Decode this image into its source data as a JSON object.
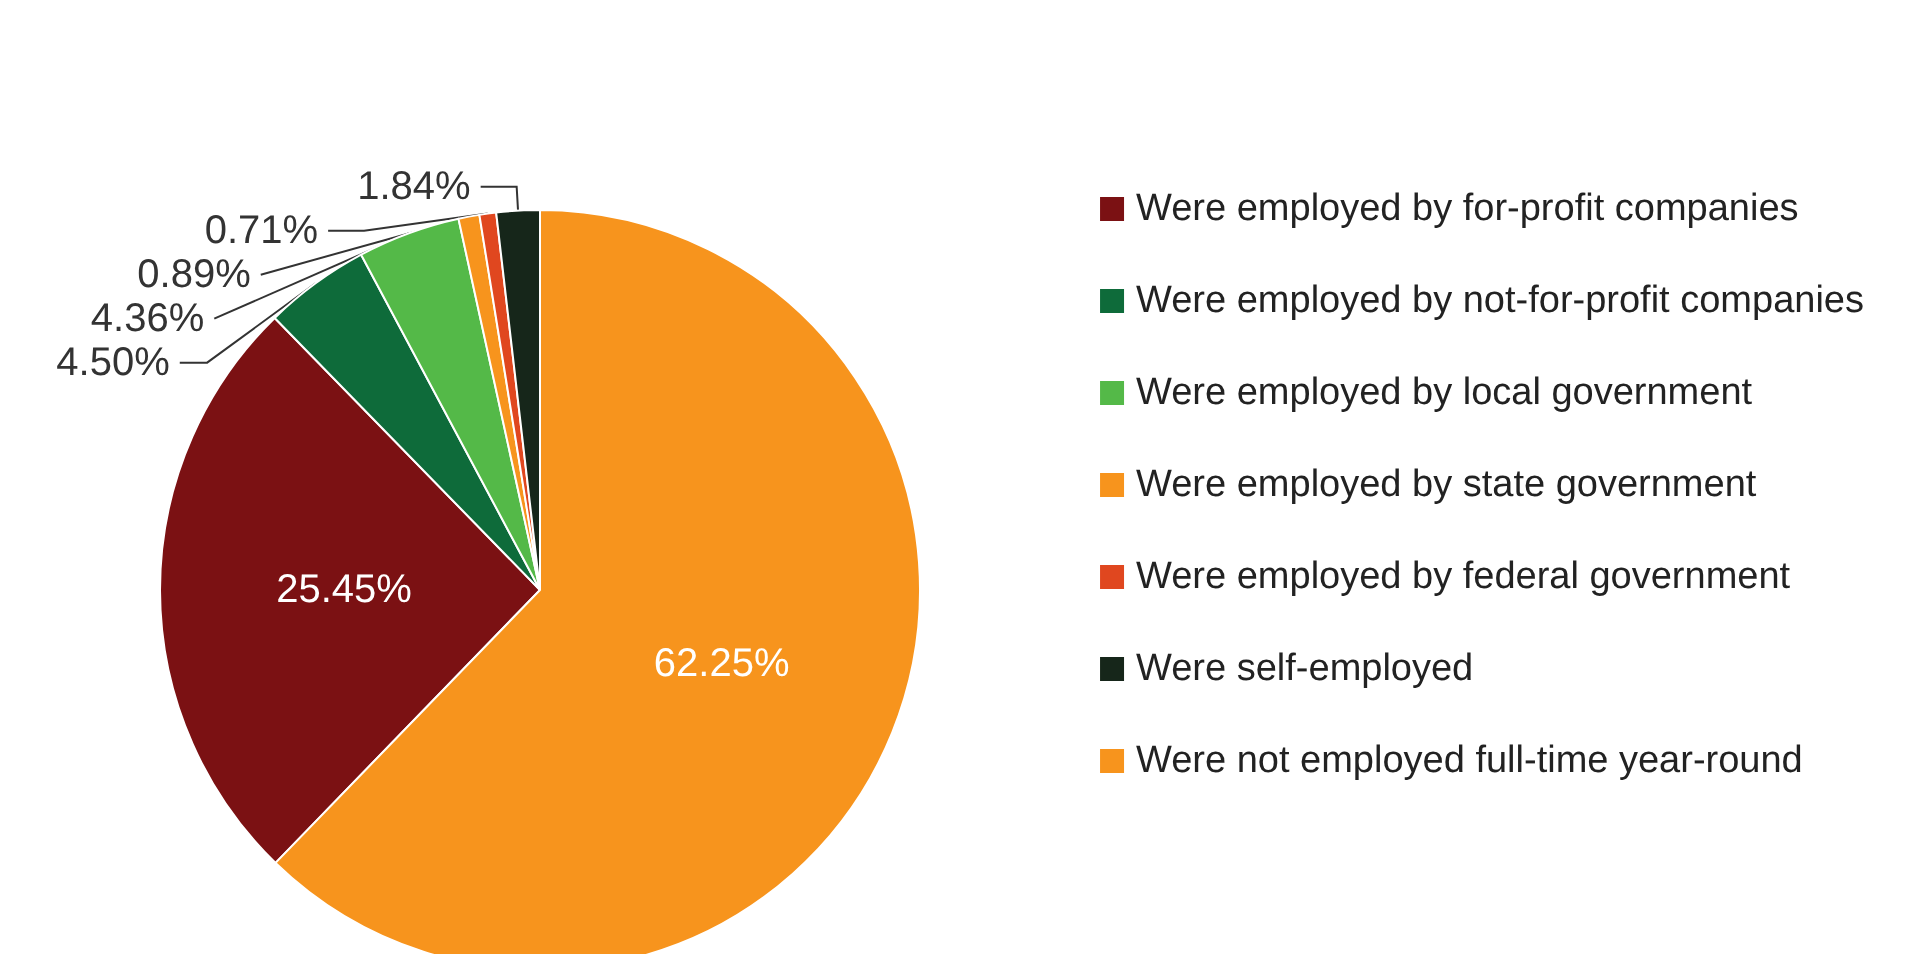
{
  "chart_data": {
    "type": "pie",
    "categories": [
      "Were employed by for-profit companies",
      "Were employed by not-for-profit companies",
      "Were employed by local government",
      "Were employed by state government",
      "Were employed by federal government",
      "Were self-employed",
      "Were not employed full-time year-round"
    ],
    "values": [
      25.45,
      4.5,
      4.36,
      0.89,
      0.71,
      1.84,
      62.25
    ],
    "colors": [
      "#7b1113",
      "#0e6b3a",
      "#54b948",
      "#f7941d",
      "#e0471f",
      "#16261a",
      "#f7941d"
    ],
    "value_labels": [
      "25.45%",
      "4.50%",
      "4.36%",
      "0.89%",
      "0.71%",
      "1.84%",
      "62.25%"
    ],
    "legend": "right"
  }
}
